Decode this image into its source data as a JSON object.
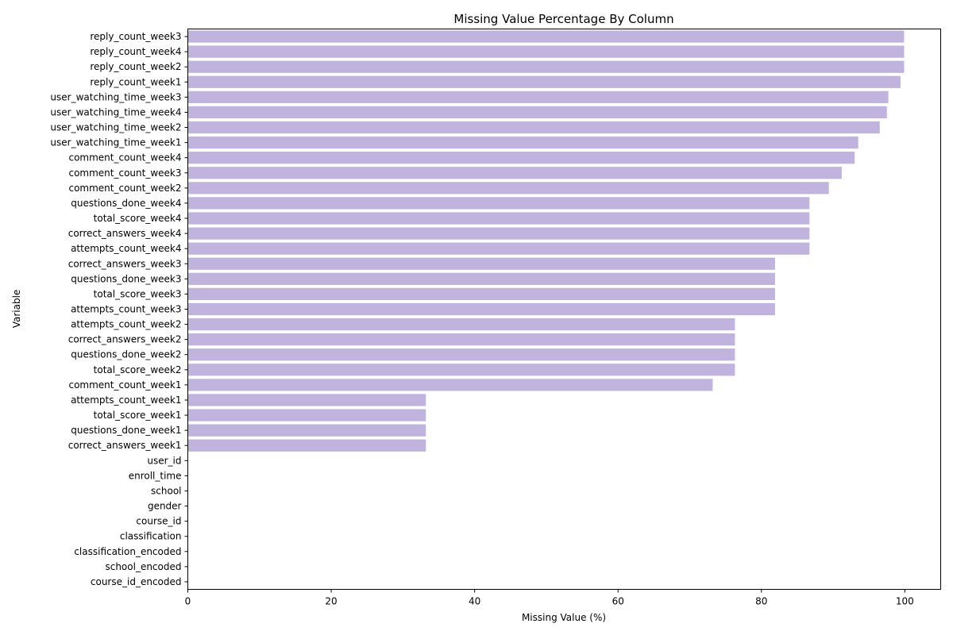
{
  "chart_data": {
    "type": "bar",
    "orientation": "horizontal",
    "title": "Missing Value Percentage By Column",
    "xlabel": "Missing Value (%)",
    "ylabel": "Variable",
    "xlim": [
      0,
      105
    ],
    "xticks": [
      0,
      20,
      40,
      60,
      80,
      100
    ],
    "grid": false,
    "bar_color": "#c0b4de",
    "categories": [
      "reply_count_week3",
      "reply_count_week4",
      "reply_count_week2",
      "reply_count_week1",
      "user_watching_time_week3",
      "user_watching_time_week4",
      "user_watching_time_week2",
      "user_watching_time_week1",
      "comment_count_week4",
      "comment_count_week3",
      "comment_count_week2",
      "questions_done_week4",
      "total_score_week4",
      "correct_answers_week4",
      "attempts_count_week4",
      "correct_answers_week3",
      "questions_done_week3",
      "total_score_week3",
      "attempts_count_week3",
      "attempts_count_week2",
      "correct_answers_week2",
      "questions_done_week2",
      "total_score_week2",
      "comment_count_week1",
      "attempts_count_week1",
      "total_score_week1",
      "questions_done_week1",
      "correct_answers_week1",
      "user_id",
      "enroll_time",
      "school",
      "gender",
      "course_id",
      "classification",
      "classification_encoded",
      "school_encoded",
      "course_id_encoded"
    ],
    "values": [
      99.9,
      99.9,
      99.9,
      99.4,
      97.7,
      97.5,
      96.5,
      93.5,
      93.0,
      91.2,
      89.4,
      86.7,
      86.7,
      86.7,
      86.7,
      81.9,
      81.9,
      81.9,
      81.9,
      76.3,
      76.3,
      76.3,
      76.3,
      73.2,
      33.2,
      33.2,
      33.2,
      33.2,
      0,
      0,
      0,
      0,
      0,
      0,
      0,
      0,
      0
    ]
  }
}
